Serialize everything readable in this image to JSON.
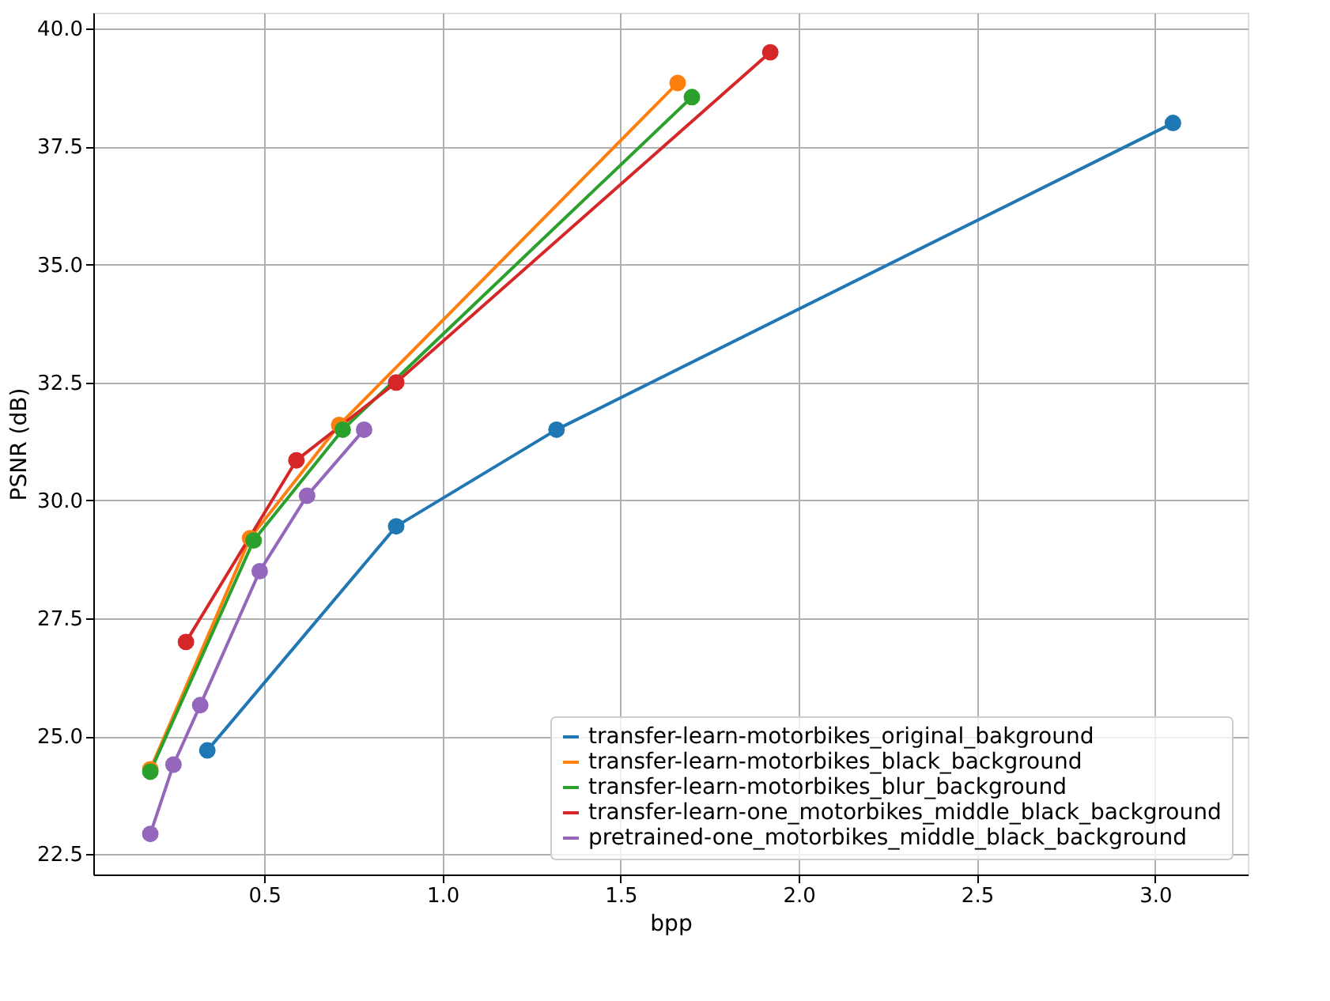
{
  "chart_data": {
    "type": "line",
    "xlabel": "bpp",
    "ylabel": "PSNR (dB)",
    "xlim": [
      0.02,
      3.26
    ],
    "ylim": [
      22.07,
      40.34
    ],
    "xticks": [
      {
        "value": 0.5,
        "label": "0.5"
      },
      {
        "value": 1.0,
        "label": "1.0"
      },
      {
        "value": 1.5,
        "label": "1.5"
      },
      {
        "value": 2.0,
        "label": "2.0"
      },
      {
        "value": 2.5,
        "label": "2.5"
      },
      {
        "value": 3.0,
        "label": "3.0"
      }
    ],
    "yticks": [
      {
        "value": 22.5,
        "label": "22.5"
      },
      {
        "value": 25.0,
        "label": "25.0"
      },
      {
        "value": 27.5,
        "label": "27.5"
      },
      {
        "value": 30.0,
        "label": "30.0"
      },
      {
        "value": 32.5,
        "label": "32.5"
      },
      {
        "value": 35.0,
        "label": "35.0"
      },
      {
        "value": 37.5,
        "label": "37.5"
      },
      {
        "value": 40.0,
        "label": "40.0"
      }
    ],
    "grid": true,
    "legend": "bottom right",
    "marker": "circle",
    "line_style": "solid",
    "series": [
      {
        "name": "transfer-learn-motorbikes_original_bakground",
        "color": "#1f77b4",
        "x": [
          0.34,
          0.87,
          1.32,
          3.05
        ],
        "values": [
          24.7,
          29.45,
          31.5,
          38.0
        ]
      },
      {
        "name": "transfer-learn-motorbikes_black_background",
        "color": "#ff7f0e",
        "x": [
          0.18,
          0.46,
          0.71,
          1.66
        ],
        "values": [
          24.3,
          29.2,
          31.6,
          38.85
        ]
      },
      {
        "name": "transfer-learn-motorbikes_blur_background",
        "color": "#2ca02c",
        "x": [
          0.18,
          0.47,
          0.72,
          1.7
        ],
        "values": [
          24.25,
          29.15,
          31.5,
          38.55
        ]
      },
      {
        "name": "transfer-learn-one_motorbikes_middle_black_background",
        "color": "#d62728",
        "x": [
          0.28,
          0.59,
          0.87,
          1.92
        ],
        "values": [
          27.0,
          30.85,
          32.5,
          39.5
        ]
      },
      {
        "name": "pretrained-one_motorbikes_middle_black_background",
        "color": "#9467bd",
        "x": [
          0.18,
          0.245,
          0.32,
          0.487,
          0.62,
          0.78
        ],
        "values": [
          22.93,
          24.4,
          25.66,
          28.5,
          30.1,
          31.5
        ]
      }
    ]
  }
}
